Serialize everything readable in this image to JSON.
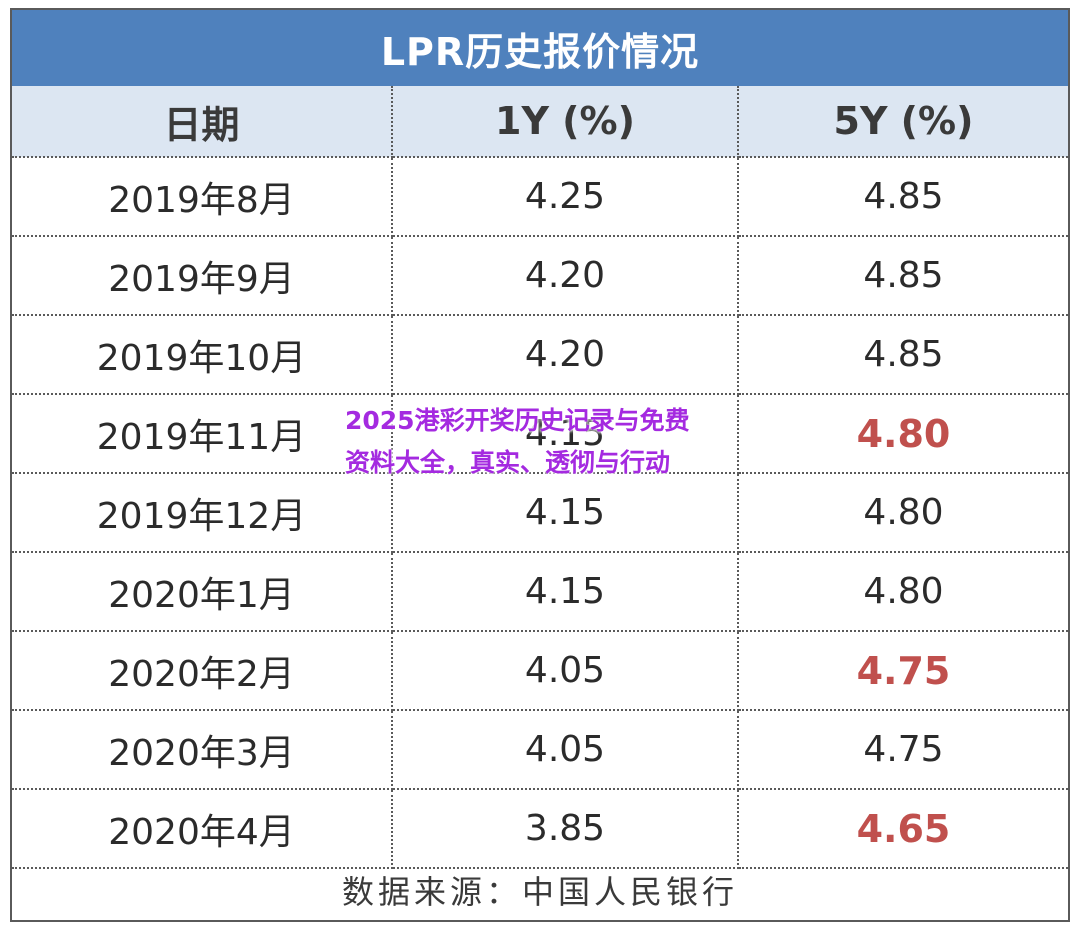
{
  "chart_data": {
    "type": "table",
    "title": "LPR历史报价情况",
    "columns": [
      "日期",
      "1Y (%)",
      "5Y (%)"
    ],
    "rows": [
      {
        "date": "2019年8月",
        "y1": "4.25",
        "y5": "4.85",
        "y5_highlight": false
      },
      {
        "date": "2019年9月",
        "y1": "4.20",
        "y5": "4.85",
        "y5_highlight": false
      },
      {
        "date": "2019年10月",
        "y1": "4.20",
        "y5": "4.85",
        "y5_highlight": false
      },
      {
        "date": "2019年11月",
        "y1": "4.15",
        "y5": "4.80",
        "y5_highlight": true
      },
      {
        "date": "2019年12月",
        "y1": "4.15",
        "y5": "4.80",
        "y5_highlight": false
      },
      {
        "date": "2020年1月",
        "y1": "4.15",
        "y5": "4.80",
        "y5_highlight": false
      },
      {
        "date": "2020年2月",
        "y1": "4.05",
        "y5": "4.75",
        "y5_highlight": true
      },
      {
        "date": "2020年3月",
        "y1": "4.05",
        "y5": "4.75",
        "y5_highlight": false
      },
      {
        "date": "2020年4月",
        "y1": "3.85",
        "y5": "4.65",
        "y5_highlight": true
      }
    ],
    "source": "数据来源：中国人民银行"
  },
  "overlay": {
    "line1": "2025港彩开奖历史记录与免费",
    "line2": "资料大全，真实、透彻与行动"
  },
  "colors": {
    "title_bg": "#4f81bd",
    "header_bg": "#dce6f2",
    "highlight": "#c0504d",
    "overlay_text": "#a42ae0"
  }
}
